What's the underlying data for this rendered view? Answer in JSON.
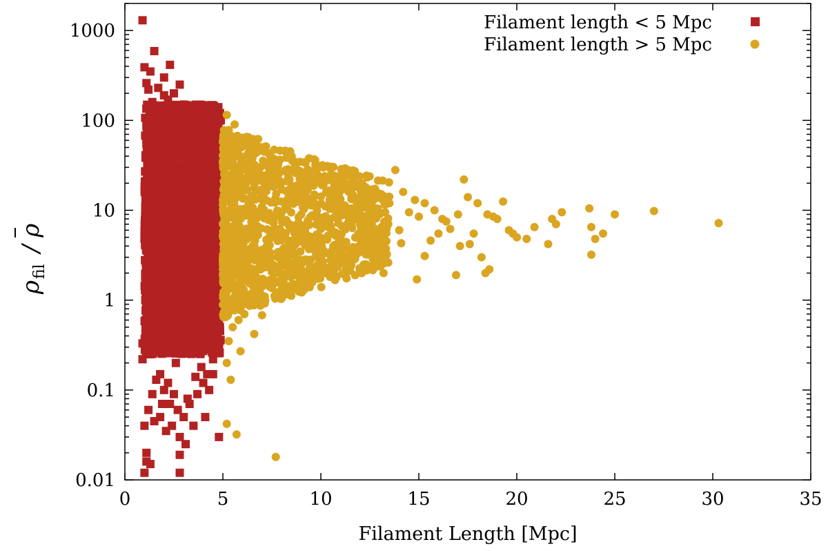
{
  "chart_data": {
    "type": "scatter",
    "xlabel": "Filament Length [Mpc]",
    "ylabel": "ρfil / ρ̄",
    "xlim": [
      0,
      35
    ],
    "ylim": [
      0.01,
      2000
    ],
    "yscale": "log",
    "xticks": [
      "0",
      "5",
      "10",
      "15",
      "20",
      "25",
      "30",
      "35"
    ],
    "yticks": [
      "0.01",
      "0.1",
      "1",
      "10",
      "100",
      "1000"
    ],
    "grid": false,
    "legend_position": "top-right",
    "series": [
      {
        "name": "Filament length < 5 Mpc",
        "marker": "square",
        "color": "#b22222",
        "density_band": {
          "x_range": [
            1.0,
            4.9
          ],
          "y_range": [
            0.25,
            150
          ]
        },
        "points": [
          [
            0.9,
            1300
          ],
          [
            1.5,
            590
          ],
          [
            1.0,
            390
          ],
          [
            2.3,
            415
          ],
          [
            1.3,
            350
          ],
          [
            2.0,
            300
          ],
          [
            1.1,
            260
          ],
          [
            2.8,
            250
          ],
          [
            1.7,
            230
          ],
          [
            1.2,
            220
          ],
          [
            2.5,
            200
          ],
          [
            3.0,
            150
          ],
          [
            2.2,
            170
          ],
          [
            3.3,
            130
          ],
          [
            3.6,
            110
          ],
          [
            4.0,
            100
          ],
          [
            3.8,
            88
          ],
          [
            4.4,
            80
          ],
          [
            4.2,
            70
          ],
          [
            4.6,
            60
          ],
          [
            3.5,
            95
          ],
          [
            2.0,
            190
          ],
          [
            1.4,
            160
          ],
          [
            1.8,
            140
          ],
          [
            4.8,
            0.3
          ],
          [
            4.5,
            0.22
          ],
          [
            4.2,
            0.15
          ],
          [
            4.0,
            0.12
          ],
          [
            3.7,
            0.09
          ],
          [
            3.3,
            0.07
          ],
          [
            3.0,
            0.05
          ],
          [
            2.7,
            0.06
          ],
          [
            2.4,
            0.04
          ],
          [
            2.1,
            0.035
          ],
          [
            1.8,
            0.05
          ],
          [
            1.5,
            0.045
          ],
          [
            1.2,
            0.06
          ],
          [
            1.0,
            0.04
          ],
          [
            1.1,
            0.02
          ],
          [
            1.1,
            0.016
          ],
          [
            1.3,
            0.015
          ],
          [
            2.3,
            0.07
          ],
          [
            2.8,
            0.03
          ],
          [
            3.1,
            0.025
          ],
          [
            3.5,
            0.04
          ],
          [
            4.1,
            0.05
          ],
          [
            4.5,
            0.15
          ],
          [
            4.8,
            0.03
          ],
          [
            2.8,
            0.019
          ],
          [
            2.8,
            0.012
          ],
          [
            1.0,
            0.012
          ],
          [
            2.5,
            0.09
          ],
          [
            2.0,
            0.1
          ],
          [
            1.6,
            0.13
          ],
          [
            3.9,
            0.18
          ],
          [
            2.6,
            0.2
          ],
          [
            1.3,
            0.25
          ],
          [
            0.9,
            0.33
          ],
          [
            0.9,
            0.22
          ],
          [
            3.2,
            0.08
          ],
          [
            1.8,
            0.15
          ],
          [
            4.3,
            0.1
          ],
          [
            1.4,
            0.09
          ],
          [
            3.6,
            0.14
          ],
          [
            2.2,
            0.12
          ],
          [
            1.9,
            0.07
          ]
        ]
      },
      {
        "name": "Filament length > 5 Mpc",
        "marker": "circle",
        "color": "#daa520",
        "density_band": {
          "x_range": [
            5.0,
            8.0
          ],
          "y_range": [
            0.4,
            45
          ]
        },
        "points": [
          [
            5.2,
            115
          ],
          [
            5.3,
            78
          ],
          [
            5.2,
            60
          ],
          [
            5.6,
            90
          ],
          [
            6.3,
            65
          ],
          [
            6.8,
            62
          ],
          [
            6.1,
            55
          ],
          [
            5.9,
            40
          ],
          [
            7.0,
            50
          ],
          [
            7.4,
            35
          ],
          [
            7.8,
            30
          ],
          [
            8.2,
            28
          ],
          [
            8.7,
            26
          ],
          [
            9.2,
            22
          ],
          [
            9.6,
            20
          ],
          [
            10.2,
            24
          ],
          [
            10.8,
            22
          ],
          [
            11.5,
            20
          ],
          [
            12.0,
            19
          ],
          [
            12.6,
            17
          ],
          [
            13.1,
            15
          ],
          [
            13.8,
            28
          ],
          [
            14.2,
            16
          ],
          [
            14.8,
            13
          ],
          [
            15.3,
            12
          ],
          [
            15.8,
            10
          ],
          [
            16.4,
            7.5
          ],
          [
            17.0,
            9
          ],
          [
            17.3,
            22
          ],
          [
            17.5,
            14
          ],
          [
            18.0,
            12
          ],
          [
            18.5,
            9
          ],
          [
            19.0,
            8
          ],
          [
            19.3,
            12.5
          ],
          [
            19.6,
            6
          ],
          [
            20.0,
            5
          ],
          [
            20.9,
            6.5
          ],
          [
            21.6,
            4.2
          ],
          [
            21.8,
            8
          ],
          [
            22.3,
            9.5
          ],
          [
            23.7,
            10.5
          ],
          [
            23.8,
            6.5
          ],
          [
            23.8,
            3.2
          ],
          [
            24.0,
            4.8
          ],
          [
            24.4,
            5.5
          ],
          [
            25.0,
            9
          ],
          [
            27.0,
            9.8
          ],
          [
            30.3,
            7.2
          ],
          [
            18.6,
            2.2
          ],
          [
            18.4,
            2.0
          ],
          [
            16.9,
            1.9
          ],
          [
            14.9,
            1.7
          ],
          [
            13.2,
            2.0
          ],
          [
            12.3,
            2.5
          ],
          [
            11.3,
            2.8
          ],
          [
            10.1,
            2.0
          ],
          [
            9.3,
            1.9
          ],
          [
            8.9,
            2.4
          ],
          [
            8.1,
            1.6
          ],
          [
            7.4,
            1.4
          ],
          [
            6.9,
            1.2
          ],
          [
            6.4,
            0.9
          ],
          [
            6.1,
            0.7
          ],
          [
            5.8,
            0.6
          ],
          [
            5.5,
            0.5
          ],
          [
            5.3,
            0.35
          ],
          [
            5.2,
            0.2
          ],
          [
            5.4,
            0.13
          ],
          [
            5.2,
            0.042
          ],
          [
            5.7,
            0.032
          ],
          [
            7.7,
            0.018
          ],
          [
            5.9,
            0.27
          ],
          [
            6.6,
            0.42
          ],
          [
            7.0,
            0.68
          ],
          [
            17.8,
            5.5
          ],
          [
            18.2,
            3.0
          ],
          [
            17.1,
            4.0
          ],
          [
            16.0,
            5.5
          ],
          [
            15.0,
            8.5
          ],
          [
            14.0,
            6.0
          ],
          [
            13.0,
            5.0
          ],
          [
            12.0,
            7.0
          ],
          [
            11.0,
            11.0
          ],
          [
            10.5,
            14.0
          ],
          [
            9.8,
            11.0
          ],
          [
            9.0,
            9.0
          ],
          [
            8.5,
            13.0
          ],
          [
            8.0,
            17.0
          ],
          [
            15.6,
            4.6
          ],
          [
            16.6,
            6.2
          ],
          [
            18.8,
            8.5
          ],
          [
            19.8,
            5.5
          ],
          [
            20.5,
            4.8
          ],
          [
            22.0,
            7.0
          ],
          [
            12.8,
            10.5
          ],
          [
            11.8,
            8.0
          ],
          [
            10.6,
            5.5
          ],
          [
            9.4,
            4.5
          ],
          [
            8.6,
            6.0
          ],
          [
            13.5,
            12.0
          ],
          [
            14.5,
            9.5
          ],
          [
            16.2,
            8.0
          ],
          [
            17.6,
            4.2
          ],
          [
            7.8,
            3.0
          ],
          [
            9.9,
            3.2
          ],
          [
            12.9,
            3.5
          ],
          [
            11.1,
            4.1
          ],
          [
            14.1,
            4.3
          ],
          [
            15.3,
            3.1
          ],
          [
            6.5,
            25
          ],
          [
            7.2,
            18
          ],
          [
            8.4,
            22
          ]
        ]
      }
    ]
  }
}
